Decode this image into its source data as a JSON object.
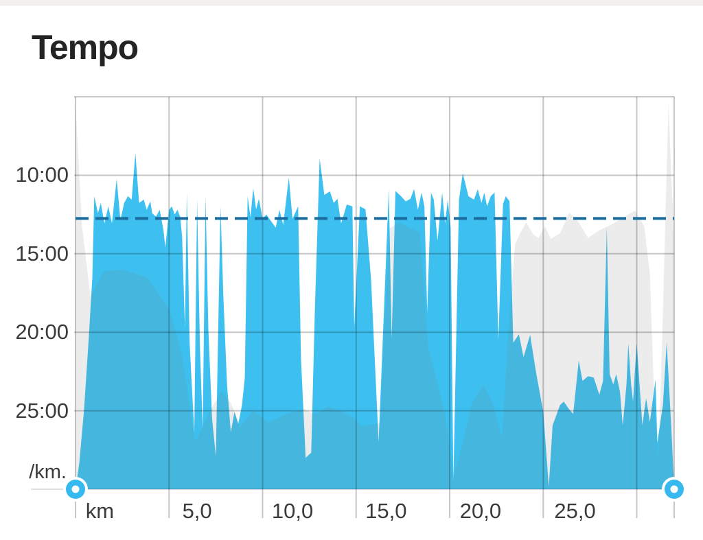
{
  "page": {
    "title": "Tempo"
  },
  "colors": {
    "pace_fill": "#3DC0EF",
    "elevation_overlay": "rgba(123,123,123,0.14)",
    "gridline": "rgba(0,0,0,0.22)",
    "baseline": "rgba(0,0,0,0.13)",
    "average_line": "#1A6B9D",
    "axis_text": "#3a3a3a",
    "handle_blue": "#35B9EE"
  },
  "handles": {
    "left_km": 0,
    "right_km": 32
  },
  "chart_data": {
    "type": "area",
    "title": "Tempo",
    "grid": true,
    "x_axis": {
      "unit": "km",
      "range_km": [
        0,
        32
      ],
      "gridline_km": [
        0,
        5,
        10,
        15,
        20,
        25,
        30,
        32
      ],
      "tick_labels": [
        {
          "text": "km",
          "km": 1.3
        },
        {
          "text": "5,0",
          "km": 6.5
        },
        {
          "text": "10,0",
          "km": 11.6
        },
        {
          "text": "15,0",
          "km": 16.6
        },
        {
          "text": "20,0",
          "km": 21.65
        },
        {
          "text": "25,0",
          "km": 26.7
        }
      ]
    },
    "y_axis": {
      "unit_label": "/km.",
      "direction": "inverted_pace_faster_is_higher",
      "range_pace_sec": [
        300,
        1800
      ],
      "tick_labels": [
        {
          "text": "10:00",
          "sec": 600
        },
        {
          "text": "15:00",
          "sec": 900
        },
        {
          "text": "20:00",
          "sec": 1200
        },
        {
          "text": "25:00",
          "sec": 1500
        }
      ]
    },
    "average_pace": {
      "pace_text": "12:45",
      "sec": 765,
      "style": "dashed"
    },
    "series": [
      {
        "name": "pace",
        "unit": "seconds_per_km",
        "points": [
          [
            0,
            1800
          ],
          [
            0.2,
            1700
          ],
          [
            0.45,
            1500
          ],
          [
            0.7,
            1230
          ],
          [
            0.9,
            990
          ],
          [
            1.0,
            680
          ],
          [
            1.2,
            745
          ],
          [
            1.35,
            706
          ],
          [
            1.55,
            784
          ],
          [
            1.75,
            719
          ],
          [
            1.95,
            784
          ],
          [
            2.2,
            614
          ],
          [
            2.4,
            771
          ],
          [
            2.6,
            706
          ],
          [
            2.8,
            680
          ],
          [
            3.0,
            693
          ],
          [
            3.2,
            515
          ],
          [
            3.4,
            706
          ],
          [
            3.65,
            693
          ],
          [
            3.8,
            732
          ],
          [
            4.0,
            700
          ],
          [
            4.1,
            745
          ],
          [
            4.3,
            758
          ],
          [
            4.5,
            732
          ],
          [
            4.7,
            810
          ],
          [
            4.8,
            876
          ],
          [
            5.0,
            732
          ],
          [
            5.15,
            719
          ],
          [
            5.3,
            750
          ],
          [
            5.45,
            732
          ],
          [
            5.6,
            760
          ],
          [
            5.7,
            837
          ],
          [
            5.85,
            1182
          ],
          [
            5.95,
            666
          ],
          [
            6.1,
            1240
          ],
          [
            6.35,
            1583
          ],
          [
            6.5,
            693
          ],
          [
            6.65,
            1255
          ],
          [
            6.8,
            1570
          ],
          [
            6.95,
            680
          ],
          [
            7.1,
            1190
          ],
          [
            7.3,
            1530
          ],
          [
            7.5,
            1675
          ],
          [
            7.75,
            719
          ],
          [
            7.9,
            1060
          ],
          [
            8.1,
            1400
          ],
          [
            8.3,
            1583
          ],
          [
            8.5,
            1504
          ],
          [
            8.7,
            1550
          ],
          [
            8.9,
            1478
          ],
          [
            9.05,
            1373
          ],
          [
            9.2,
            680
          ],
          [
            9.35,
            760
          ],
          [
            9.5,
            650
          ],
          [
            9.65,
            730
          ],
          [
            9.8,
            690
          ],
          [
            10.0,
            766
          ],
          [
            10.2,
            750
          ],
          [
            10.4,
            770
          ],
          [
            10.7,
            800
          ],
          [
            10.9,
            732
          ],
          [
            11.1,
            790
          ],
          [
            11.4,
            609
          ],
          [
            11.6,
            766
          ],
          [
            11.9,
            719
          ],
          [
            12.05,
            1300
          ],
          [
            12.3,
            1680
          ],
          [
            12.6,
            1660
          ],
          [
            12.8,
            1100
          ],
          [
            13.05,
            536
          ],
          [
            13.3,
            675
          ],
          [
            13.6,
            662
          ],
          [
            13.8,
            706
          ],
          [
            14.0,
            690
          ],
          [
            14.2,
            784
          ],
          [
            14.5,
            712
          ],
          [
            14.8,
            719
          ],
          [
            14.9,
            1182
          ],
          [
            15.2,
            719
          ],
          [
            15.5,
            730
          ],
          [
            15.8,
            1000
          ],
          [
            16.2,
            1620
          ],
          [
            16.75,
            653
          ],
          [
            16.9,
            1229
          ],
          [
            17.1,
            660
          ],
          [
            17.4,
            680
          ],
          [
            17.65,
            700
          ],
          [
            17.9,
            690
          ],
          [
            18.1,
            653
          ],
          [
            18.3,
            732
          ],
          [
            18.5,
            666
          ],
          [
            18.65,
            719
          ],
          [
            18.8,
            1125
          ],
          [
            19.0,
            666
          ],
          [
            19.15,
            693
          ],
          [
            19.35,
            850
          ],
          [
            19.6,
            666
          ],
          [
            19.75,
            784
          ],
          [
            19.9,
            693
          ],
          [
            20.05,
            800
          ],
          [
            20.2,
            1770
          ],
          [
            20.5,
            693
          ],
          [
            20.7,
            593
          ],
          [
            21.0,
            680
          ],
          [
            21.3,
            693
          ],
          [
            21.5,
            653
          ],
          [
            21.7,
            706
          ],
          [
            21.85,
            666
          ],
          [
            22.0,
            719
          ],
          [
            22.2,
            680
          ],
          [
            22.4,
            666
          ],
          [
            22.6,
            1229
          ],
          [
            22.85,
            710
          ],
          [
            23.0,
            680
          ],
          [
            23.2,
            700
          ],
          [
            23.4,
            1240
          ],
          [
            23.7,
            1208
          ],
          [
            23.95,
            1295
          ],
          [
            24.3,
            1210
          ],
          [
            24.6,
            1347
          ],
          [
            25.0,
            1504
          ],
          [
            25.3,
            1790
          ],
          [
            25.5,
            1556
          ],
          [
            25.9,
            1478
          ],
          [
            26.1,
            1465
          ],
          [
            26.35,
            1491
          ],
          [
            26.6,
            1512
          ],
          [
            26.9,
            1308
          ],
          [
            27.1,
            1386
          ],
          [
            27.4,
            1368
          ],
          [
            27.7,
            1373
          ],
          [
            28.0,
            1439
          ],
          [
            28.2,
            1386
          ],
          [
            28.4,
            797
          ],
          [
            28.55,
            1360
          ],
          [
            28.75,
            1400
          ],
          [
            28.9,
            1360
          ],
          [
            29.1,
            1426
          ],
          [
            29.25,
            1556
          ],
          [
            29.45,
            1400
          ],
          [
            29.55,
            1242
          ],
          [
            29.7,
            1400
          ],
          [
            29.8,
            1465
          ],
          [
            29.9,
            1347
          ],
          [
            30.0,
            1242
          ],
          [
            30.2,
            1452
          ],
          [
            30.3,
            1556
          ],
          [
            30.5,
            1452
          ],
          [
            30.7,
            1543
          ],
          [
            31.0,
            1381
          ],
          [
            31.1,
            1622
          ],
          [
            31.4,
            1478
          ],
          [
            31.6,
            1238
          ],
          [
            31.85,
            1570
          ],
          [
            32.0,
            1795
          ]
        ]
      },
      {
        "name": "elevation",
        "unit": "relative_height_fraction_of_plot",
        "points": [
          [
            0,
            0.98
          ],
          [
            0.35,
            0.67
          ],
          [
            0.8,
            0.49
          ],
          [
            1.5,
            0.555
          ],
          [
            2.5,
            0.56
          ],
          [
            3.8,
            0.54
          ],
          [
            5.0,
            0.46
          ],
          [
            5.7,
            0.34
          ],
          [
            6.4,
            0.12
          ],
          [
            7.2,
            0.2
          ],
          [
            7.8,
            0.25
          ],
          [
            8.3,
            0.22
          ],
          [
            8.8,
            0.16
          ],
          [
            9.5,
            0.2
          ],
          [
            10.3,
            0.17
          ],
          [
            11.2,
            0.19
          ],
          [
            12.2,
            0.205
          ],
          [
            12.8,
            0.19
          ],
          [
            13.5,
            0.21
          ],
          [
            14.2,
            0.2
          ],
          [
            14.9,
            0.18
          ],
          [
            15.3,
            0.16
          ],
          [
            15.9,
            0.165
          ],
          [
            16.3,
            0.17
          ],
          [
            16.55,
            0.45
          ],
          [
            16.8,
            0.665
          ],
          [
            17.3,
            0.68
          ],
          [
            17.9,
            0.665
          ],
          [
            18.4,
            0.655
          ],
          [
            18.65,
            0.5
          ],
          [
            18.85,
            0.36
          ],
          [
            19.3,
            0.28
          ],
          [
            19.8,
            0.18
          ],
          [
            20.2,
            0.03
          ],
          [
            20.6,
            0.1
          ],
          [
            21.2,
            0.22
          ],
          [
            21.8,
            0.265
          ],
          [
            22.3,
            0.22
          ],
          [
            22.8,
            0.13
          ],
          [
            23.2,
            0.45
          ],
          [
            23.5,
            0.625
          ],
          [
            23.8,
            0.655
          ],
          [
            24.1,
            0.68
          ],
          [
            24.45,
            0.65
          ],
          [
            24.75,
            0.64
          ],
          [
            25.1,
            0.67
          ],
          [
            25.4,
            0.638
          ],
          [
            25.9,
            0.652
          ],
          [
            26.4,
            0.705
          ],
          [
            26.9,
            0.68
          ],
          [
            27.4,
            0.64
          ],
          [
            28.0,
            0.66
          ],
          [
            28.6,
            0.673
          ],
          [
            29.2,
            0.69
          ],
          [
            29.9,
            0.71
          ],
          [
            30.4,
            0.67
          ],
          [
            30.7,
            0.55
          ],
          [
            30.95,
            0.2
          ],
          [
            31.15,
            0.075
          ],
          [
            31.35,
            0.37
          ],
          [
            31.55,
            0.72
          ],
          [
            31.7,
            0.988
          ],
          [
            31.85,
            0.79
          ],
          [
            32.0,
            0.65
          ]
        ]
      }
    ]
  }
}
